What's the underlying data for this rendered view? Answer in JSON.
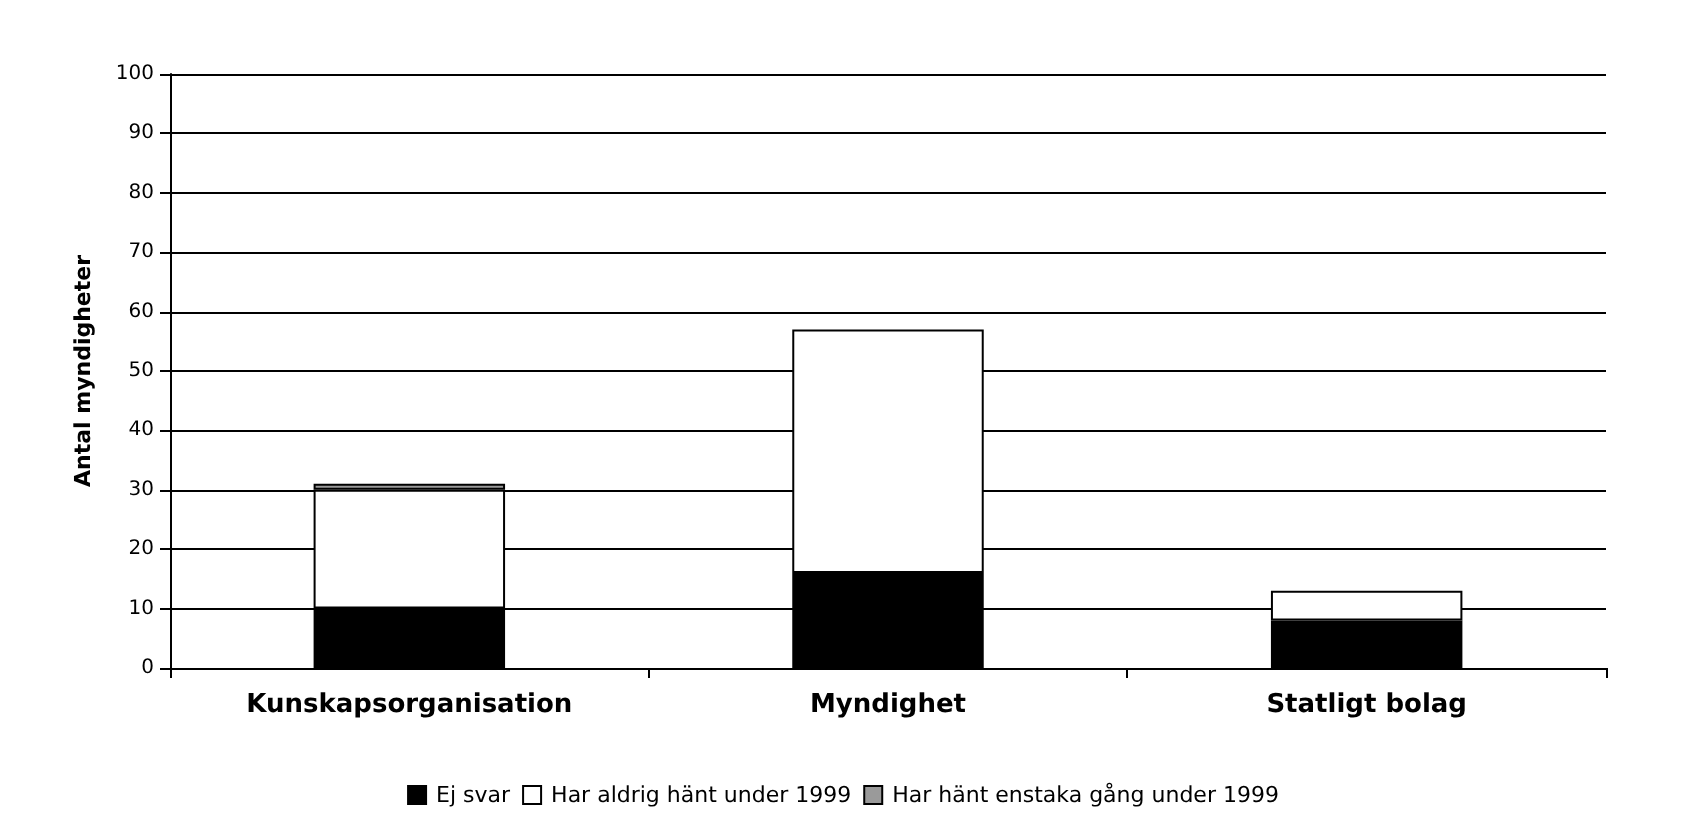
{
  "chart_data": {
    "type": "bar",
    "stacked": true,
    "ylabel": "Antal myndigheter",
    "categories": [
      "Kunskapsorganisation",
      "Myndighet",
      "Statligt bolag"
    ],
    "series": [
      {
        "name": "Ej svar",
        "color": "#000000",
        "values": [
          10,
          16,
          8
        ]
      },
      {
        "name": "Har aldrig hänt under 1999",
        "color": "#ffffff",
        "values": [
          20,
          41,
          5
        ]
      },
      {
        "name": "Har hänt enstaka gång under 1999",
        "color": "#9a9a9a",
        "values": [
          1,
          0,
          0
        ]
      }
    ],
    "ylim": [
      0,
      100
    ],
    "yticks": [
      0,
      10,
      20,
      30,
      40,
      50,
      60,
      70,
      80,
      90,
      100
    ],
    "grid": "y",
    "legend": "bottom"
  }
}
